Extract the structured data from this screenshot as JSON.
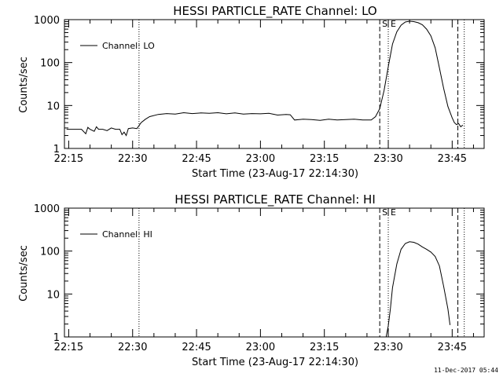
{
  "footer_text": "11-Dec-2017 05:44",
  "chart_data": [
    {
      "type": "line",
      "title": "HESSI PARTICLE_RATE Channel: LO",
      "xlabel": "Start Time (23-Aug-17 22:14:30)",
      "ylabel": "Counts/sec",
      "yscale": "log",
      "ylim": [
        1,
        1000
      ],
      "xlim": [
        "22:14:00",
        "23:52:30"
      ],
      "x_ticks": [
        "22:15",
        "22:30",
        "22:45",
        "23:00",
        "23:15",
        "23:30",
        "23:45"
      ],
      "y_ticks": [
        "1",
        "10",
        "100",
        "1000"
      ],
      "legend": {
        "position": "top-left",
        "entries": [
          "Channel: LO"
        ]
      },
      "markers": [
        {
          "time": "22:31:30",
          "style": "dotted",
          "label": ""
        },
        {
          "time": "23:28:00",
          "style": "dashed",
          "label": "S"
        },
        {
          "time": "23:30:00",
          "style": "dotted",
          "label": "E"
        },
        {
          "time": "23:46:20",
          "style": "dashed",
          "label": ""
        },
        {
          "time": "23:47:50",
          "style": "dotted",
          "label": ""
        }
      ],
      "series": [
        {
          "name": "Channel: LO",
          "x": [
            "22:14:30",
            "22:18:00",
            "22:19:00",
            "22:19:30",
            "22:20:00",
            "22:21:00",
            "22:21:30",
            "22:22:00",
            "22:23:00",
            "22:24:00",
            "22:25:00",
            "22:26:00",
            "22:27:00",
            "22:27:30",
            "22:28:00",
            "22:28:30",
            "22:29:00",
            "22:30:00",
            "22:31:00",
            "22:32:00",
            "22:33:00",
            "22:34:00",
            "22:36:00",
            "22:38:00",
            "22:40:00",
            "22:42:00",
            "22:44:00",
            "22:46:00",
            "22:48:00",
            "22:50:00",
            "22:52:00",
            "22:54:00",
            "22:56:00",
            "22:58:00",
            "23:00:00",
            "23:02:00",
            "23:04:00",
            "23:06:00",
            "23:07:00",
            "23:08:00",
            "23:10:00",
            "23:12:00",
            "23:14:00",
            "23:16:00",
            "23:18:00",
            "23:20:00",
            "23:22:00",
            "23:24:00",
            "23:26:00",
            "23:27:00",
            "23:28:00",
            "23:29:00",
            "23:30:00",
            "23:31:00",
            "23:32:00",
            "23:33:00",
            "23:34:00",
            "23:35:00",
            "23:36:00",
            "23:37:00",
            "23:38:00",
            "23:39:00",
            "23:40:00",
            "23:41:00",
            "23:42:00",
            "23:43:00",
            "23:44:00",
            "23:45:00",
            "23:45:30",
            "23:46:00",
            "23:46:30",
            "23:47:00",
            "23:47:30"
          ],
          "values": [
            2.8,
            2.8,
            2.2,
            3.1,
            2.8,
            2.5,
            3.2,
            2.8,
            2.8,
            2.6,
            3.0,
            2.8,
            2.8,
            2.1,
            2.4,
            2.0,
            2.9,
            3.0,
            2.9,
            4.0,
            4.8,
            5.5,
            6.2,
            6.5,
            6.3,
            6.8,
            6.5,
            6.7,
            6.6,
            6.8,
            6.4,
            6.7,
            6.3,
            6.5,
            6.4,
            6.6,
            6.0,
            6.2,
            6.1,
            4.6,
            4.8,
            4.7,
            4.5,
            4.8,
            4.6,
            4.7,
            4.8,
            4.6,
            4.6,
            5.5,
            8.5,
            22,
            80,
            270,
            520,
            740,
            880,
            920,
            900,
            850,
            760,
            600,
            420,
            220,
            75,
            25,
            9.5,
            5.2,
            4.0,
            3.6,
            3.8,
            3.2,
            3.5
          ]
        }
      ]
    },
    {
      "type": "line",
      "title": "HESSI PARTICLE_RATE Channel: HI",
      "xlabel": "Start Time (23-Aug-17 22:14:30)",
      "ylabel": "Counts/sec",
      "yscale": "log",
      "ylim": [
        1,
        1000
      ],
      "xlim": [
        "22:14:00",
        "23:52:30"
      ],
      "x_ticks": [
        "22:15",
        "22:30",
        "22:45",
        "23:00",
        "23:15",
        "23:30",
        "23:45"
      ],
      "y_ticks": [
        "1",
        "10",
        "100",
        "1000"
      ],
      "legend": {
        "position": "top-left",
        "entries": [
          "Channel: HI"
        ]
      },
      "markers": [
        {
          "time": "22:31:30",
          "style": "dotted",
          "label": ""
        },
        {
          "time": "23:28:00",
          "style": "dashed",
          "label": "S"
        },
        {
          "time": "23:30:00",
          "style": "dotted",
          "label": "E"
        },
        {
          "time": "23:46:20",
          "style": "dashed",
          "label": ""
        },
        {
          "time": "23:47:50",
          "style": "dotted",
          "label": ""
        }
      ],
      "series": [
        {
          "name": "Channel: HI",
          "x": [
            "23:29:30",
            "23:30:00",
            "23:30:30",
            "23:31:00",
            "23:32:00",
            "23:33:00",
            "23:34:00",
            "23:35:00",
            "23:36:00",
            "23:37:00",
            "23:38:00",
            "23:39:00",
            "23:40:00",
            "23:41:00",
            "23:42:00",
            "23:43:00",
            "23:44:00",
            "23:44:30"
          ],
          "values": [
            1.0,
            1.8,
            4.5,
            14,
            50,
            110,
            150,
            165,
            160,
            145,
            125,
            110,
            95,
            75,
            45,
            15,
            4.5,
            1.9
          ]
        }
      ]
    }
  ]
}
